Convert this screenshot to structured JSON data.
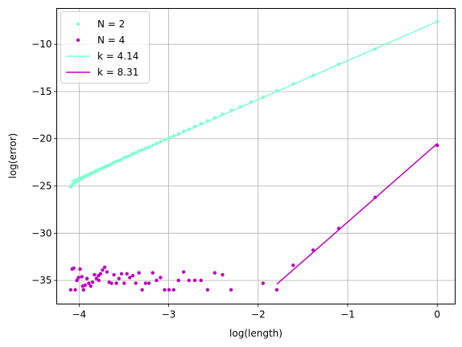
{
  "chart_data": {
    "type": "scatter",
    "xlabel": "log(length)",
    "ylabel": "log(error)",
    "xlim": [
      -4.25,
      0.2
    ],
    "ylim": [
      -37.5,
      -6.2
    ],
    "xticks": [
      -4,
      -3,
      -2,
      -1,
      0
    ],
    "xtick_labels": [
      "−4",
      "−3",
      "−2",
      "−1",
      "0"
    ],
    "yticks": [
      -35,
      -30,
      -25,
      -20,
      -15,
      -10
    ],
    "ytick_labels": [
      "−35",
      "−30",
      "−25",
      "−20",
      "−15",
      "−10"
    ],
    "grid": true,
    "legend_position": "upper-left",
    "colors": {
      "n2": "#7fffd4",
      "n4": "#bf00bf"
    },
    "series": [
      {
        "name": "N = 2",
        "kind": "scatter",
        "color": "#7fffd4",
        "x": [
          0,
          -0.693,
          -1.099,
          -1.386,
          -1.609,
          -1.792,
          -1.946,
          -2.079,
          -2.197,
          -2.303,
          -2.398,
          -2.485,
          -2.565,
          -2.639,
          -2.708,
          -2.773,
          -2.833,
          -2.89,
          -2.944,
          -2.996,
          -3.045,
          -3.091,
          -3.135,
          -3.178,
          -3.219,
          -3.258,
          -3.296,
          -3.332,
          -3.367,
          -3.401,
          -3.434,
          -3.466,
          -3.497,
          -3.526,
          -3.555,
          -3.584,
          -3.611,
          -3.638,
          -3.664,
          -3.689,
          -3.714,
          -3.738,
          -3.761,
          -3.784,
          -3.807,
          -3.829,
          -3.85,
          -3.871,
          -3.892,
          -3.912,
          -3.932,
          -3.951,
          -3.97,
          -3.989,
          -4.007,
          -4.025,
          -4.043,
          -4.06,
          -4.078,
          -4.094
        ],
        "y": [
          -7.6,
          -10.5,
          -12.1,
          -13.3,
          -14.2,
          -14.9,
          -15.6,
          -16.1,
          -16.6,
          -17.0,
          -17.4,
          -17.8,
          -18.1,
          -18.4,
          -18.7,
          -19.0,
          -19.2,
          -19.5,
          -19.7,
          -19.9,
          -20.1,
          -20.3,
          -20.5,
          -20.7,
          -20.9,
          -21.0,
          -21.2,
          -21.3,
          -21.5,
          -21.6,
          -21.8,
          -21.9,
          -22.0,
          -22.2,
          -22.3,
          -22.4,
          -22.5,
          -22.7,
          -22.8,
          -22.9,
          -23.0,
          -23.1,
          -23.2,
          -23.3,
          -23.4,
          -23.5,
          -23.6,
          -23.7,
          -23.8,
          -23.9,
          -24.0,
          -24.1,
          -24.2,
          -24.3,
          -24.4,
          -24.5,
          -24.6,
          -24.7,
          -24.9,
          -25.1
        ]
      },
      {
        "name": "N = 4",
        "kind": "scatter",
        "color": "#bf00bf",
        "x": [
          0,
          -0.693,
          -1.099,
          -1.386,
          -1.609,
          -1.792,
          -1.946,
          -2.303,
          -2.398,
          -2.485,
          -2.565,
          -2.639,
          -2.708,
          -2.773,
          -2.833,
          -2.89,
          -2.944,
          -2.996,
          -3.045,
          -3.091,
          -3.135,
          -3.178,
          -3.219,
          -3.258,
          -3.296,
          -3.332,
          -3.367,
          -3.401,
          -3.434,
          -3.466,
          -3.497,
          -3.526,
          -3.555,
          -3.584,
          -3.611,
          -3.638,
          -3.664,
          -3.689,
          -3.714,
          -3.738,
          -3.761,
          -3.784,
          -3.807,
          -3.829,
          -3.85,
          -3.871,
          -3.892,
          -3.912,
          -3.932,
          -3.951,
          -3.97,
          -3.989,
          -4.007,
          -4.025,
          -4.043,
          -4.06,
          -4.078,
          -4.094,
          -3.78,
          -3.96
        ],
        "y": [
          -20.7,
          -26.2,
          -29.5,
          -31.8,
          -33.4,
          -36.0,
          -35.3,
          -36.0,
          -34.4,
          -34.2,
          -36.0,
          -35.0,
          -35.0,
          -35.0,
          -34.1,
          -35.0,
          -36.0,
          -36.0,
          -36.0,
          -34.7,
          -35.0,
          -34.2,
          -35.3,
          -35.3,
          -36.0,
          -34.2,
          -35.3,
          -34.5,
          -34.7,
          -34.3,
          -35.3,
          -34.3,
          -34.8,
          -35.3,
          -34.4,
          -35.3,
          -35.2,
          -34.1,
          -33.6,
          -33.9,
          -34.3,
          -34.5,
          -34.8,
          -34.4,
          -35.2,
          -35.6,
          -35.3,
          -34.8,
          -35.5,
          -36.0,
          -34.6,
          -33.8,
          -34.7,
          -35.0,
          -36.0,
          -33.7,
          -33.8,
          -36.0,
          -35.0,
          -35.6
        ]
      },
      {
        "name": "k = 4.14",
        "kind": "line",
        "color": "#7fffd4",
        "x": [
          -4.094,
          0
        ],
        "y": [
          -24.5,
          -7.6
        ]
      },
      {
        "name": "k = 8.31",
        "kind": "line",
        "color": "#bf00bf",
        "x": [
          -1.792,
          0
        ],
        "y": [
          -35.4,
          -20.5
        ]
      }
    ]
  }
}
